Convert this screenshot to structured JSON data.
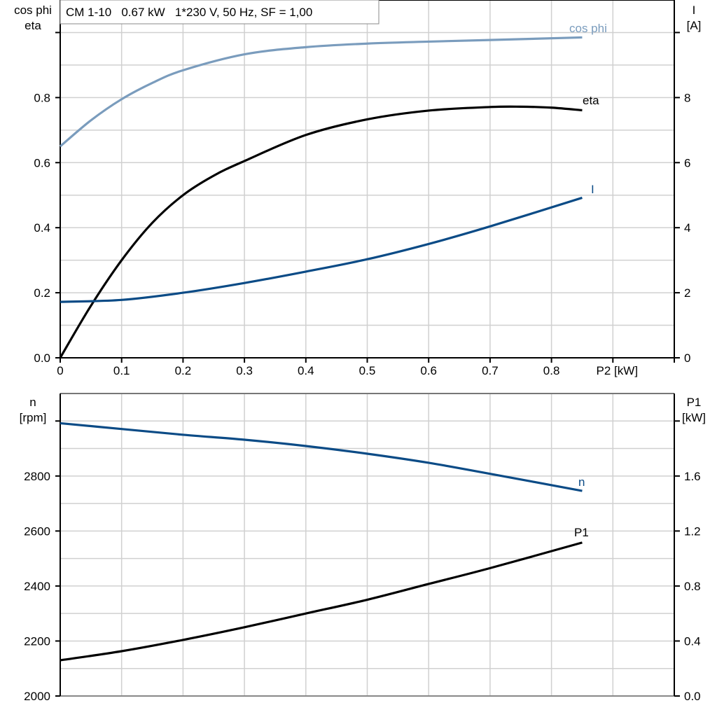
{
  "title": "CM 1-10   0.67 kW   1*230 V, 50 Hz, SF = 1,00",
  "chart_data": [
    {
      "type": "line",
      "xlabel": "P2 [kW]",
      "xlim": [
        0,
        1.0
      ],
      "xticks": [
        "0",
        "0.1",
        "0.2",
        "0.3",
        "0.4",
        "0.5",
        "0.6",
        "0.7",
        "0.8"
      ],
      "ylabel_left": [
        "cos phi",
        "eta"
      ],
      "ylim_left": [
        0,
        1.1
      ],
      "yticks_left": [
        "0.0",
        "0.2",
        "0.4",
        "0.6",
        "0.8"
      ],
      "ylabel_right": [
        "I",
        "[A]"
      ],
      "ylim_right": [
        0,
        11
      ],
      "yticks_right": [
        "0",
        "2",
        "4",
        "6",
        "8"
      ],
      "grid": true,
      "series": [
        {
          "name": "cos phi",
          "axis": "left",
          "color": "#7a9cbd",
          "x": [
            0,
            0.05,
            0.1,
            0.15,
            0.2,
            0.3,
            0.4,
            0.5,
            0.6,
            0.7,
            0.85
          ],
          "y": [
            0.65,
            0.73,
            0.795,
            0.845,
            0.884,
            0.933,
            0.955,
            0.966,
            0.972,
            0.977,
            0.985
          ]
        },
        {
          "name": "eta",
          "axis": "left",
          "color": "#000000",
          "x": [
            0,
            0.05,
            0.1,
            0.15,
            0.2,
            0.25,
            0.3,
            0.4,
            0.5,
            0.6,
            0.7,
            0.75,
            0.8,
            0.85
          ],
          "y": [
            0,
            0.16,
            0.3,
            0.415,
            0.5,
            0.56,
            0.605,
            0.685,
            0.733,
            0.76,
            0.771,
            0.772,
            0.769,
            0.761
          ]
        },
        {
          "name": "I",
          "axis": "right",
          "color": "#0b4b86",
          "x": [
            0,
            0.1,
            0.2,
            0.3,
            0.4,
            0.5,
            0.6,
            0.7,
            0.85
          ],
          "y": [
            1.72,
            1.78,
            2.0,
            2.3,
            2.65,
            3.03,
            3.5,
            4.04,
            4.92
          ]
        }
      ]
    },
    {
      "type": "line",
      "xlim": [
        0,
        1.0
      ],
      "ylabel_left": [
        "n",
        "[rpm]"
      ],
      "ylim_left": [
        2000,
        3100
      ],
      "yticks_left": [
        "2000",
        "2200",
        "2400",
        "2600",
        "2800"
      ],
      "ylabel_right": [
        "P1",
        "[kW]"
      ],
      "ylim_right": [
        0,
        2.2
      ],
      "yticks_right": [
        "0.0",
        "0.4",
        "0.8",
        "1.2",
        "1.6"
      ],
      "grid": true,
      "series": [
        {
          "name": "n",
          "axis": "left",
          "color": "#0b4b86",
          "x": [
            0,
            0.1,
            0.2,
            0.3,
            0.4,
            0.5,
            0.6,
            0.7,
            0.85
          ],
          "y": [
            2992,
            2971,
            2950,
            2932,
            2909,
            2881,
            2848,
            2808,
            2746
          ]
        },
        {
          "name": "P1",
          "axis": "right",
          "color": "#000000",
          "x": [
            0,
            0.1,
            0.2,
            0.3,
            0.4,
            0.5,
            0.6,
            0.7,
            0.85
          ],
          "y": [
            0.26,
            0.326,
            0.408,
            0.5,
            0.6,
            0.7,
            0.815,
            0.93,
            1.116
          ]
        }
      ]
    }
  ]
}
